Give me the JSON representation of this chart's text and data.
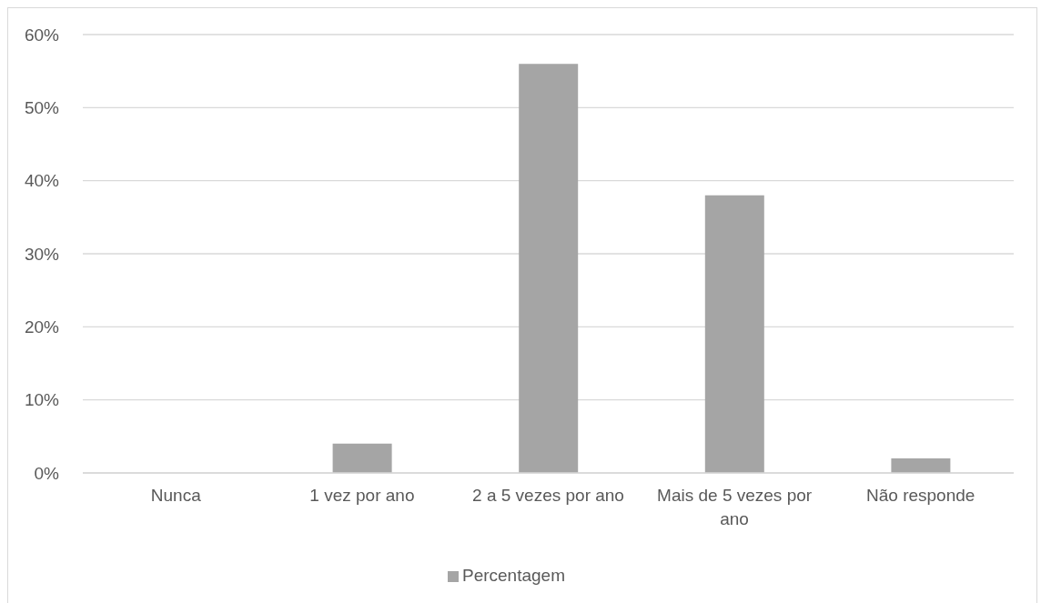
{
  "chart_data": {
    "type": "bar",
    "categories": [
      "Nunca",
      "1 vez por ano",
      "2 a 5 vezes por ano",
      "Mais de 5 vezes por ano",
      "Não responde"
    ],
    "series": [
      {
        "name": "Percentagem",
        "color": "#a5a5a5",
        "values": [
          0,
          4,
          56,
          38,
          2
        ]
      }
    ],
    "ylim": [
      0,
      60
    ],
    "yticks": [
      {
        "value": 0,
        "label": "0%"
      },
      {
        "value": 10,
        "label": "10%"
      },
      {
        "value": 20,
        "label": "20%"
      },
      {
        "value": 30,
        "label": "30%"
      },
      {
        "value": 40,
        "label": "40%"
      },
      {
        "value": 50,
        "label": "50%"
      },
      {
        "value": 60,
        "label": "60%"
      }
    ],
    "grid": "y",
    "legend": "bottom"
  }
}
